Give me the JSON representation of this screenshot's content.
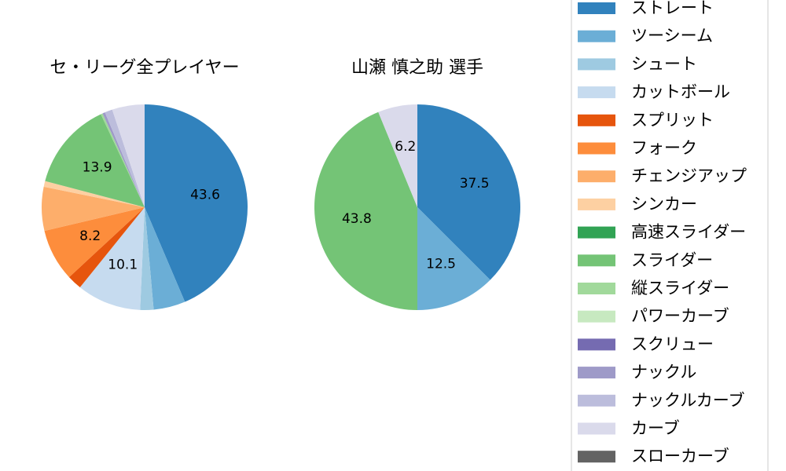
{
  "chart_data": [
    {
      "type": "pie",
      "title": "セ・リーグ全プレイヤー",
      "slices": [
        {
          "label": "ストレート",
          "value": 43.6,
          "color": "#3182bd",
          "shown_label": "43.6"
        },
        {
          "label": "ツーシーム",
          "value": 5.0,
          "color": "#6baed6",
          "shown_label": ""
        },
        {
          "label": "シュート",
          "value": 2.1,
          "color": "#9ecae1",
          "shown_label": ""
        },
        {
          "label": "カットボール",
          "value": 10.1,
          "color": "#c6dbef",
          "shown_label": "10.1"
        },
        {
          "label": "スプリット",
          "value": 2.3,
          "color": "#e6550d",
          "shown_label": ""
        },
        {
          "label": "フォーク",
          "value": 8.2,
          "color": "#fd8d3c",
          "shown_label": "8.2"
        },
        {
          "label": "チェンジアップ",
          "value": 6.9,
          "color": "#fdae6b",
          "shown_label": ""
        },
        {
          "label": "シンカー",
          "value": 0.9,
          "color": "#fdd0a2",
          "shown_label": ""
        },
        {
          "label": "高速スライダー",
          "value": 0.0,
          "color": "#31a354",
          "shown_label": ""
        },
        {
          "label": "スライダー",
          "value": 13.9,
          "color": "#74c476",
          "shown_label": "13.9"
        },
        {
          "label": "縦スライダー",
          "value": 0.3,
          "color": "#a1d99b",
          "shown_label": ""
        },
        {
          "label": "パワーカーブ",
          "value": 0.0,
          "color": "#c7e9c0",
          "shown_label": ""
        },
        {
          "label": "スクリュー",
          "value": 0.0,
          "color": "#756bb1",
          "shown_label": ""
        },
        {
          "label": "ナックル",
          "value": 0.4,
          "color": "#9e9ac8",
          "shown_label": ""
        },
        {
          "label": "ナックルカーブ",
          "value": 1.2,
          "color": "#bcbddc",
          "shown_label": ""
        },
        {
          "label": "カーブ",
          "value": 5.1,
          "color": "#dadaeb",
          "shown_label": ""
        },
        {
          "label": "スローカーブ",
          "value": 0.0,
          "color": "#636363",
          "shown_label": ""
        }
      ]
    },
    {
      "type": "pie",
      "title": "山瀬 慎之助  選手",
      "slices": [
        {
          "label": "ストレート",
          "value": 37.5,
          "color": "#3182bd",
          "shown_label": "37.5"
        },
        {
          "label": "ツーシーム",
          "value": 12.5,
          "color": "#6baed6",
          "shown_label": "12.5"
        },
        {
          "label": "スライダー",
          "value": 43.8,
          "color": "#74c476",
          "shown_label": "43.8"
        },
        {
          "label": "カーブ",
          "value": 6.2,
          "color": "#dadaeb",
          "shown_label": "6.2"
        }
      ]
    }
  ],
  "legend": {
    "placement": "right",
    "entries": [
      {
        "label": "ストレート",
        "color": "#3182bd"
      },
      {
        "label": "ツーシーム",
        "color": "#6baed6"
      },
      {
        "label": "シュート",
        "color": "#9ecae1"
      },
      {
        "label": "カットボール",
        "color": "#c6dbef"
      },
      {
        "label": "スプリット",
        "color": "#e6550d"
      },
      {
        "label": "フォーク",
        "color": "#fd8d3c"
      },
      {
        "label": "チェンジアップ",
        "color": "#fdae6b"
      },
      {
        "label": "シンカー",
        "color": "#fdd0a2"
      },
      {
        "label": "高速スライダー",
        "color": "#31a354"
      },
      {
        "label": "スライダー",
        "color": "#74c476"
      },
      {
        "label": "縦スライダー",
        "color": "#a1d99b"
      },
      {
        "label": "パワーカーブ",
        "color": "#c7e9c0"
      },
      {
        "label": "スクリュー",
        "color": "#756bb1"
      },
      {
        "label": "ナックル",
        "color": "#9e9ac8"
      },
      {
        "label": "ナックルカーブ",
        "color": "#bcbddc"
      },
      {
        "label": "カーブ",
        "color": "#dadaeb"
      },
      {
        "label": "スローカーブ",
        "color": "#636363"
      }
    ]
  }
}
